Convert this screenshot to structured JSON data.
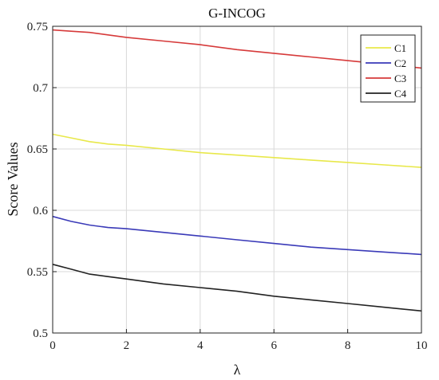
{
  "chart_data": {
    "type": "line",
    "title": "G-INCOG",
    "xlabel": "λ",
    "ylabel": "Score Values",
    "xlim": [
      0,
      10
    ],
    "ylim": [
      0.5,
      0.75
    ],
    "xticks": [
      0,
      2,
      4,
      6,
      8,
      10
    ],
    "yticks": [
      0.5,
      0.55,
      0.6,
      0.65,
      0.7,
      0.75
    ],
    "ytick_labels": [
      "0.5",
      "0.55",
      "0.6",
      "0.65",
      "0.7",
      "0.75"
    ],
    "grid": true,
    "legend_position": "top-right",
    "x": [
      0,
      0.5,
      1,
      1.5,
      2,
      3,
      4,
      5,
      6,
      7,
      8,
      9,
      10
    ],
    "series": [
      {
        "name": "C1",
        "color": "#e8e84a",
        "values": [
          0.662,
          0.659,
          0.656,
          0.654,
          0.653,
          0.65,
          0.647,
          0.645,
          0.643,
          0.641,
          0.639,
          0.637,
          0.635
        ]
      },
      {
        "name": "C2",
        "color": "#3a3ab8",
        "values": [
          0.595,
          0.591,
          0.588,
          0.586,
          0.585,
          0.582,
          0.579,
          0.576,
          0.573,
          0.57,
          0.568,
          0.566,
          0.564
        ]
      },
      {
        "name": "C3",
        "color": "#d63a3a",
        "values": [
          0.747,
          0.746,
          0.745,
          0.743,
          0.741,
          0.738,
          0.735,
          0.731,
          0.728,
          0.725,
          0.722,
          0.719,
          0.716
        ]
      },
      {
        "name": "C4",
        "color": "#222222",
        "values": [
          0.556,
          0.552,
          0.548,
          0.546,
          0.544,
          0.54,
          0.537,
          0.534,
          0.53,
          0.527,
          0.524,
          0.521,
          0.518
        ]
      }
    ]
  }
}
